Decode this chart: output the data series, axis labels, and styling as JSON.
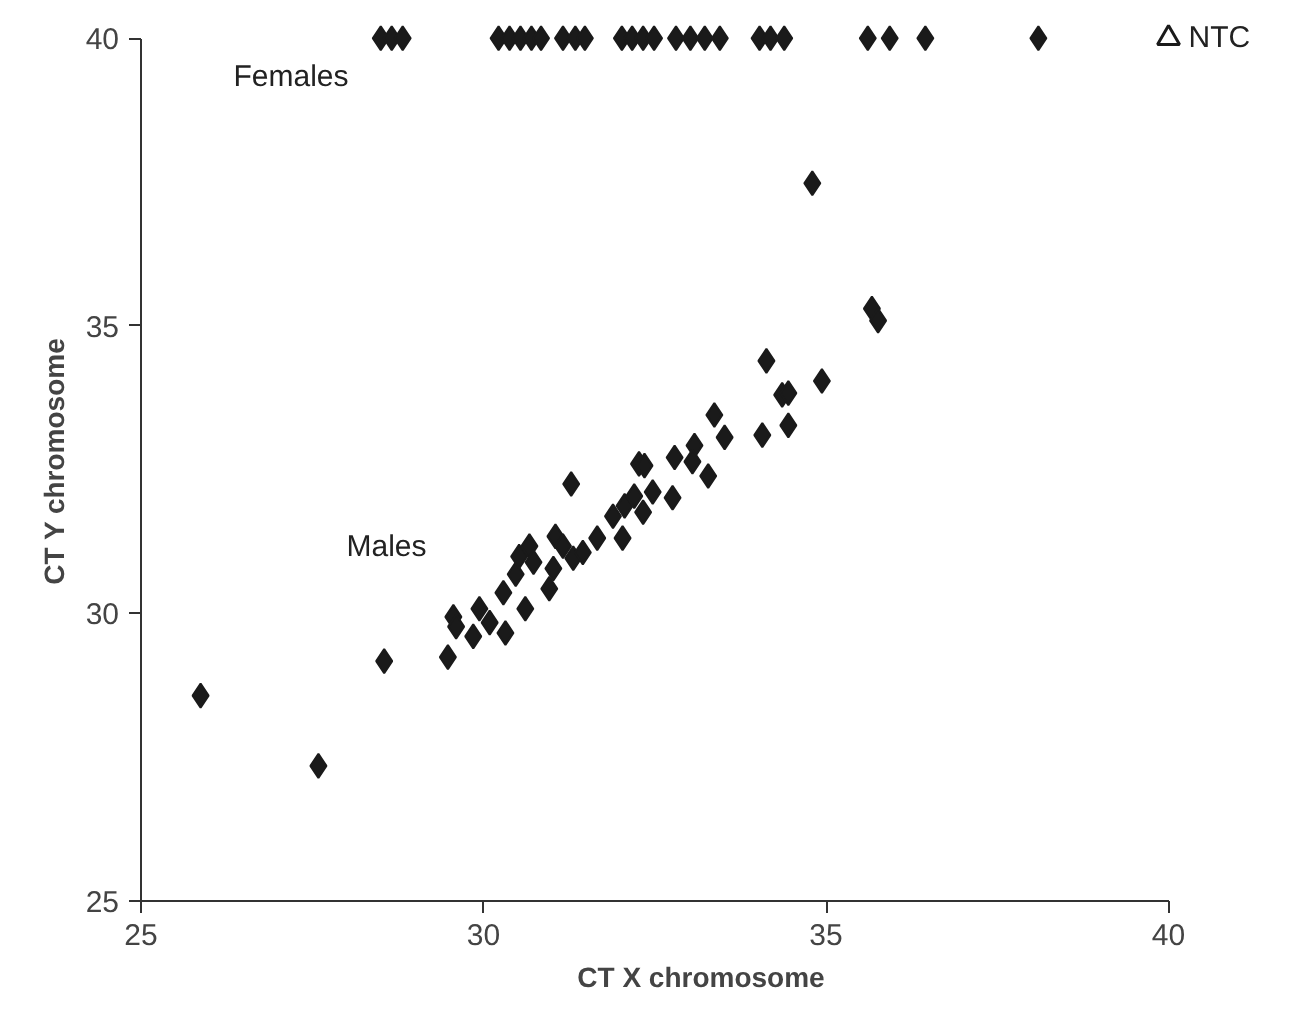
{
  "chart_data": {
    "type": "scatter",
    "xlabel": "CT X chromosome",
    "ylabel": "CT Y chromosome",
    "xlim": [
      25,
      40
    ],
    "ylim": [
      25,
      40
    ],
    "xticks": [
      25,
      30,
      35,
      40
    ],
    "yticks": [
      25,
      30,
      35,
      40
    ],
    "grid": false,
    "marker": "diamond",
    "annotations": [
      "Females",
      "Males"
    ],
    "series": [
      {
        "color": "#1a1a1a",
        "x": [
          28.5,
          28.66,
          28.82,
          30.22,
          30.38,
          30.54,
          30.7,
          30.84,
          31.16,
          31.34,
          31.48,
          32.02,
          32.17,
          32.33,
          32.49,
          32.81,
          33.02,
          33.23,
          33.45,
          34.03,
          34.19,
          34.39,
          35.61,
          35.93,
          36.45,
          38.1
        ],
        "values": [
          40,
          40,
          40,
          40,
          40,
          40,
          40,
          40,
          40,
          40,
          40,
          40,
          40,
          40,
          40,
          40,
          40,
          40,
          40,
          40,
          40,
          40,
          40,
          40,
          40,
          40
        ]
      },
      {
        "color": "#1a1a1a",
        "x": [
          25.87,
          27.59,
          28.55,
          29.48,
          29.56,
          29.6,
          29.85,
          29.94,
          30.09,
          30.32,
          30.29,
          30.61,
          30.47,
          30.52,
          30.67,
          30.73,
          30.96,
          31.02,
          31.05,
          31.16,
          31.31,
          31.28,
          31.45,
          31.66,
          31.89,
          32.03,
          32.06,
          32.2,
          32.33,
          32.27,
          32.35,
          32.47,
          32.76,
          32.79,
          33.08,
          33.05,
          33.28,
          33.37,
          33.52,
          34.07,
          34.13,
          34.8,
          35.67,
          35.76,
          34.94,
          34.36,
          34.45,
          34.45
        ],
        "values": [
          28.57,
          27.35,
          29.17,
          29.24,
          29.94,
          29.77,
          29.6,
          30.08,
          29.84,
          29.66,
          30.36,
          30.08,
          30.68,
          30.99,
          31.17,
          30.89,
          30.43,
          30.78,
          31.34,
          31.17,
          30.96,
          32.25,
          31.06,
          31.31,
          31.69,
          31.31,
          31.87,
          32.04,
          31.76,
          32.6,
          32.57,
          32.11,
          32.01,
          32.71,
          32.92,
          32.64,
          32.39,
          33.45,
          33.06,
          33.1,
          34.39,
          37.48,
          35.3,
          35.09,
          34.04,
          33.8,
          33.83,
          33.27
        ]
      },
      {
        "name": "NTC",
        "color": "#1a1a1a",
        "marker": "triangle",
        "x": [
          40
        ],
        "values": [
          40
        ]
      }
    ]
  }
}
